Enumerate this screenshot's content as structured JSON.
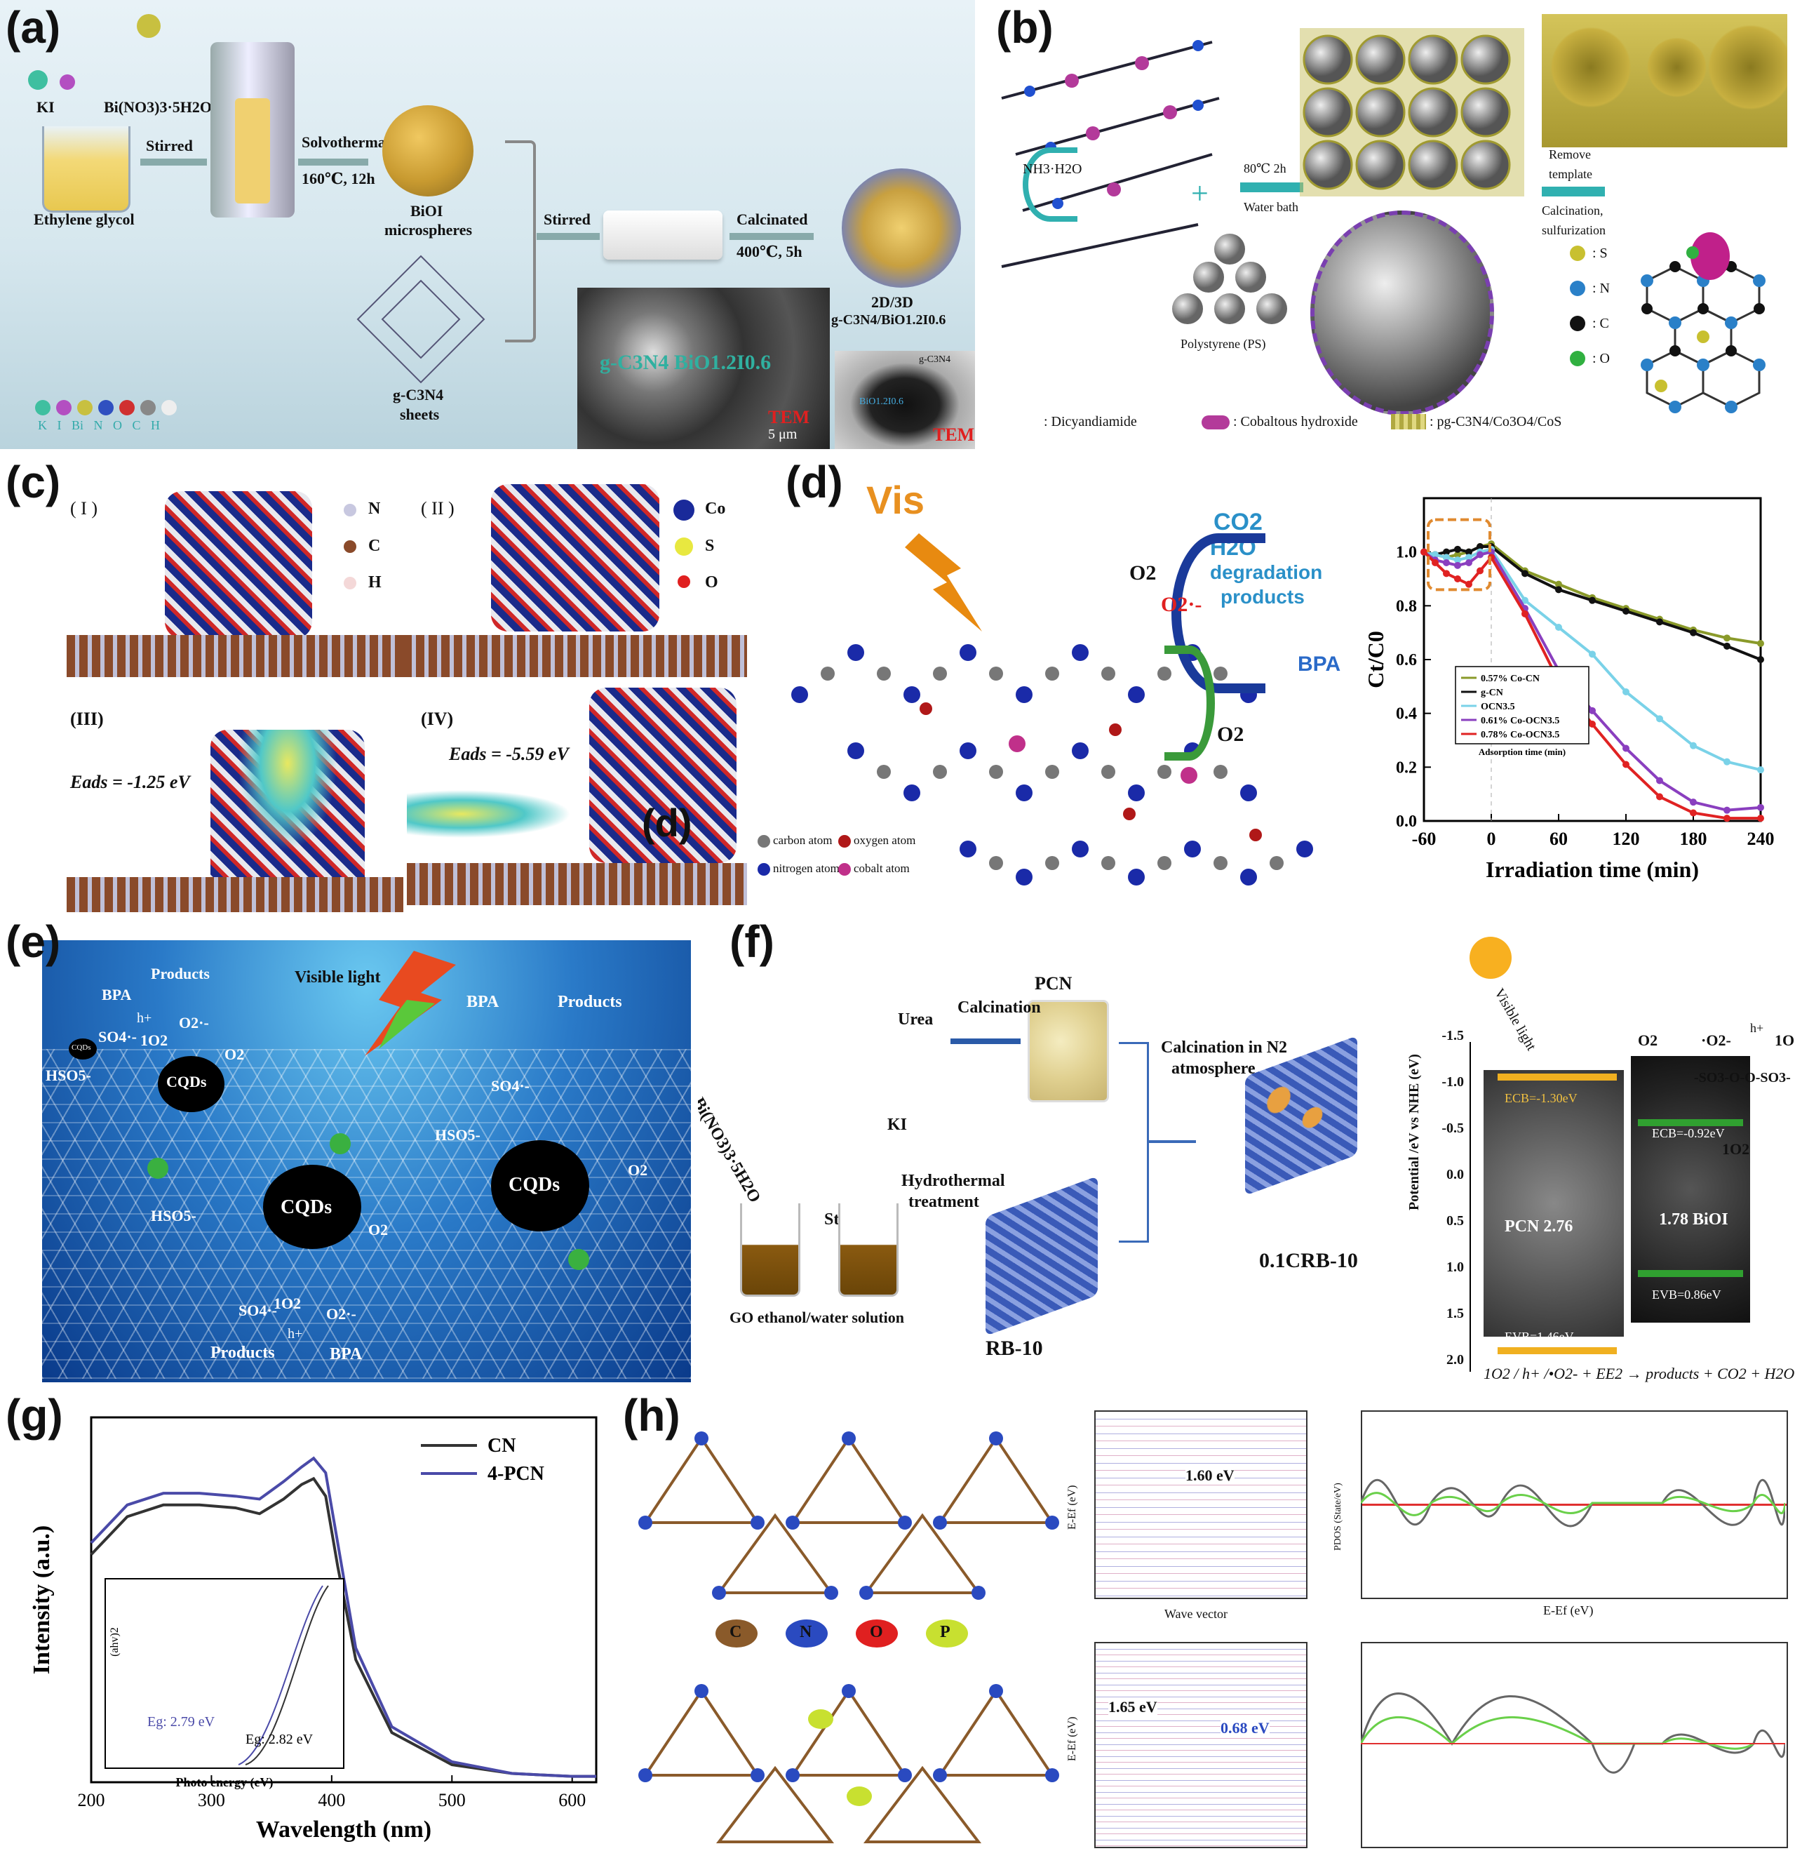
{
  "panels": {
    "a": {
      "label": "(a)",
      "ki": "KI",
      "bi": "Bi(NO3)3·5H2O",
      "stirred1": "Stirred",
      "eg": "Ethylene glycol",
      "solvo": "Solvothermal",
      "solvo_cond": "160℃, 12h",
      "bioi": "BiOI",
      "bioi2": "microspheres",
      "gcn": "g-C3N4",
      "gcn2": "sheets",
      "stirred2": "Stirred",
      "calcinated": "Calcinated",
      "calc_cond": "400℃, 5h",
      "product1": "2D/3D",
      "product2": "g-C3N4/BiO1.2I0.6",
      "sem_text": "g-C3N4 BiO1.2I0.6",
      "scale": "5 μm",
      "tem1": "TEM",
      "tem2": "TEM",
      "tem_label": "BiO1.2I0.6",
      "tem_gcn": "g-C3N4",
      "legend": "K I Bi N O C H"
    },
    "b": {
      "label": "(b)",
      "nh3": "NH3·H2O",
      "cond1": "80℃ 2h",
      "cond2": "Water bath",
      "ps": "Polystyrene (PS)",
      "remove1": "Remove",
      "remove2": "template",
      "calc1": "Calcination,",
      "calc2": "sulfurization",
      "leg_s": ": S",
      "leg_n": ": N",
      "leg_c": ": C",
      "leg_o": ": O",
      "foot1": ": Dicyandiamide",
      "foot2": ": Cobaltous hydroxide",
      "foot3": ": pg-C3N4/Co3O4/CoS"
    },
    "c": {
      "label": "(c)",
      "i": "( I )",
      "ii": "( II )",
      "iii": "(III)",
      "iv": "(IV)",
      "n": "N",
      "c": "C",
      "h": "H",
      "co": "Co",
      "s": "S",
      "o": "O",
      "e1": "Eads = -1.25 eV",
      "e2": "Eads = -5.59 eV",
      "d_overlay": "(d)"
    },
    "d": {
      "label": "(d)",
      "vis": "Vis",
      "co2": "CO2",
      "h2o": "H2O",
      "deg1": "degradation",
      "deg2": "products",
      "bpa": "BPA",
      "o2a": "O2",
      "o2b": "O2·-",
      "o2c": "O2",
      "leg1": "carbon atom",
      "leg2": "oxygen atom",
      "leg3": "nitrogen atom",
      "leg4": "cobalt atom",
      "ylabel": "Ct/C0",
      "xlabel": "Irradiation time (min)",
      "inset_x": "Adsorption time (min)"
    },
    "e": {
      "label": "(e)",
      "visible": "Visible light",
      "bpa1": "BPA",
      "prod1": "Products",
      "h1": "h+",
      "so4a": "SO4·-",
      "o2s1": "1O2",
      "o2r1": "O2·-",
      "o2a": "O2",
      "hso5a": "HSO5-",
      "cqd1": "CQDs",
      "cqd2": "CQDs",
      "cqd3": "CQDs",
      "cqd4": "CQDs",
      "bpa2": "BPA",
      "prod2": "Products",
      "so4b": "SO4·-",
      "hso5b": "HSO5-",
      "o2b": "O2",
      "o2c": "O2",
      "hso5c": "HSO5-",
      "so4c": "SO4·-",
      "o2s3": "1O2",
      "o2r3": "O2·-",
      "prod3": "Products",
      "bpa3": "BPA",
      "h3": "h+"
    },
    "f": {
      "label": "(f)",
      "pcn": "PCN",
      "urea": "Urea",
      "calcination": "Calcination",
      "bi": "Bi(NO3)3·5H2O",
      "ki": "KI",
      "calc_n2a": "Calcination in N2",
      "calc_n2b": "atmosphere",
      "stirring": "Stirring",
      "hydro1": "Hydrothermal",
      "hydro2": "treatment",
      "go": "GO ethanol/water solution",
      "rb": "RB-10",
      "crb": "0.1CRB-10",
      "visible": "Visible light",
      "ylabel": "Potential /eV vs NHE (eV)",
      "o2": "O2",
      "o2r": "·O2-",
      "h": "h+",
      "so2": "1O2",
      "so2b": "1O2",
      "peroxy": "-SO3-O-O-SO3-",
      "pcn_gap": "PCN 2.76",
      "bioi_gap": "1.78 BiOI",
      "ecb": "ECB=-0.92eV",
      "evb": "EVB=0.86eV",
      "evb2": "EVB=1.46eV",
      "ecb2": "ECB=-1.30eV",
      "eq": "1O2 / h+ /•O2- + EE2 → products + CO2 + H2O",
      "ticks": [
        "-1.5",
        "-1.0",
        "-0.5",
        "0.0",
        "0.5",
        "1.0",
        "1.5",
        "2.0"
      ]
    },
    "g": {
      "label": "(g)",
      "ylabel": "Intensity (a.u.)",
      "xlabel": "Wavelength (nm)",
      "leg_cn": "CN",
      "leg_pcn": "4-PCN",
      "inset_y": "(ahv)2",
      "inset_x": "Photo energy (eV)",
      "eg1": "Eg: 2.79 eV",
      "eg2": "Eg: 2.82 eV"
    },
    "h": {
      "label": "(h)",
      "c": "C",
      "n": "N",
      "o": "O",
      "p": "P",
      "gap1": "1.60 eV",
      "gap2": "1.65 eV",
      "gap3": "0.68 eV",
      "wv": "Wave vector",
      "ylab": "E-Ef (eV)",
      "pdos": "PDOS (State/eV)",
      "pdos_x": "E-Ef (eV)"
    }
  },
  "chart_data": [
    {
      "type": "line",
      "panel": "d",
      "x": [
        -60,
        -50,
        -40,
        -30,
        -20,
        -10,
        0,
        30,
        60,
        90,
        120,
        150,
        180,
        210,
        240
      ],
      "series": [
        {
          "name": "0.57% Co-CN",
          "values": [
            1.0,
            0.99,
            0.98,
            0.99,
            1.0,
            1.02,
            1.03,
            0.93,
            0.88,
            0.83,
            0.79,
            0.75,
            0.71,
            0.68,
            0.66
          ]
        },
        {
          "name": "g-CN",
          "values": [
            1.0,
            0.99,
            1.0,
            1.01,
            1.0,
            1.02,
            1.02,
            0.92,
            0.86,
            0.82,
            0.78,
            0.74,
            0.7,
            0.65,
            0.6
          ]
        },
        {
          "name": "OCN3.5",
          "values": [
            1.0,
            0.99,
            0.98,
            0.97,
            0.98,
            1.0,
            1.01,
            0.82,
            0.72,
            0.62,
            0.48,
            0.38,
            0.28,
            0.22,
            0.19
          ]
        },
        {
          "name": "0.61% Co-OCN3.5",
          "values": [
            1.0,
            0.97,
            0.96,
            0.95,
            0.96,
            0.99,
            1.0,
            0.79,
            0.56,
            0.41,
            0.27,
            0.15,
            0.07,
            0.04,
            0.05
          ]
        },
        {
          "name": "0.78% Co-OCN3.5",
          "values": [
            1.0,
            0.96,
            0.92,
            0.9,
            0.88,
            0.93,
            0.98,
            0.77,
            0.52,
            0.36,
            0.21,
            0.09,
            0.03,
            0.01,
            0.01
          ]
        }
      ],
      "xlabel": "Irradiation time (min)",
      "ylabel": "Ct/C0",
      "xlim": [
        -60,
        240
      ],
      "ylim": [
        0,
        1.2
      ],
      "xticks": [
        "-60",
        "0",
        "60",
        "120",
        "180",
        "240"
      ],
      "yticks": [
        "0.0",
        "0.2",
        "0.4",
        "0.6",
        "0.8",
        "1.0"
      ],
      "colors": [
        "#8a9a2a",
        "#111111",
        "#7ad2e8",
        "#8a3fbf",
        "#e02222"
      ],
      "legend_position": "inset-bottom"
    },
    {
      "type": "line",
      "panel": "g",
      "x": [
        200,
        230,
        260,
        290,
        320,
        340,
        360,
        375,
        385,
        395,
        405,
        420,
        450,
        500,
        550,
        600,
        620
      ],
      "series": [
        {
          "name": "CN",
          "values": [
            0.78,
            0.91,
            0.95,
            0.95,
            0.94,
            0.92,
            0.97,
            1.02,
            1.04,
            0.98,
            0.74,
            0.42,
            0.17,
            0.06,
            0.03,
            0.02,
            0.02
          ]
        },
        {
          "name": "4-PCN",
          "values": [
            0.82,
            0.95,
            0.99,
            0.99,
            0.98,
            0.97,
            1.03,
            1.08,
            1.11,
            1.06,
            0.82,
            0.46,
            0.19,
            0.07,
            0.03,
            0.02,
            0.02
          ]
        }
      ],
      "xlabel": "Wavelength (nm)",
      "ylabel": "Intensity (a.u.)",
      "xlim": [
        200,
        620
      ],
      "xticks": [
        "200",
        "300",
        "400",
        "500",
        "600"
      ],
      "colors": [
        "#333333",
        "#4a4aa8"
      ],
      "legend_position": "top-right"
    }
  ]
}
